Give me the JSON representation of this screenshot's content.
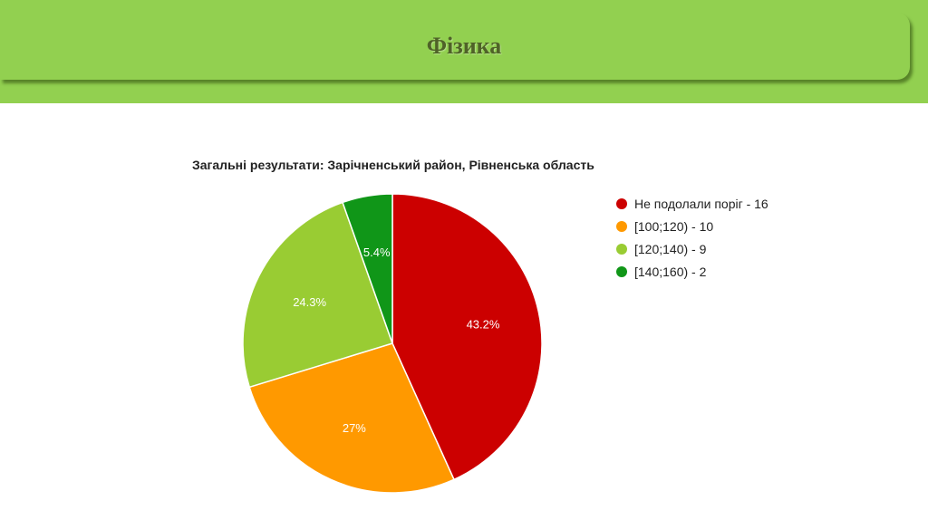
{
  "slide": {
    "title": "Фізика"
  },
  "chart_data": {
    "type": "pie",
    "title": "Загальні результати: Зарічненський район, Рівненська область",
    "slices": [
      {
        "label": "Не подолали поріг - 16",
        "value": 16,
        "percent_label": "43.2%",
        "color": "#cc0000"
      },
      {
        "label": "[100;120) - 10",
        "value": 10,
        "percent_label": "27%",
        "color": "#ff9900"
      },
      {
        "label": "[120;140) - 9",
        "value": 9,
        "percent_label": "24.3%",
        "color": "#99cc33"
      },
      {
        "label": "[140;160) - 2",
        "value": 2,
        "percent_label": "5.4%",
        "color": "#109618"
      }
    ],
    "legend_position": "right"
  }
}
